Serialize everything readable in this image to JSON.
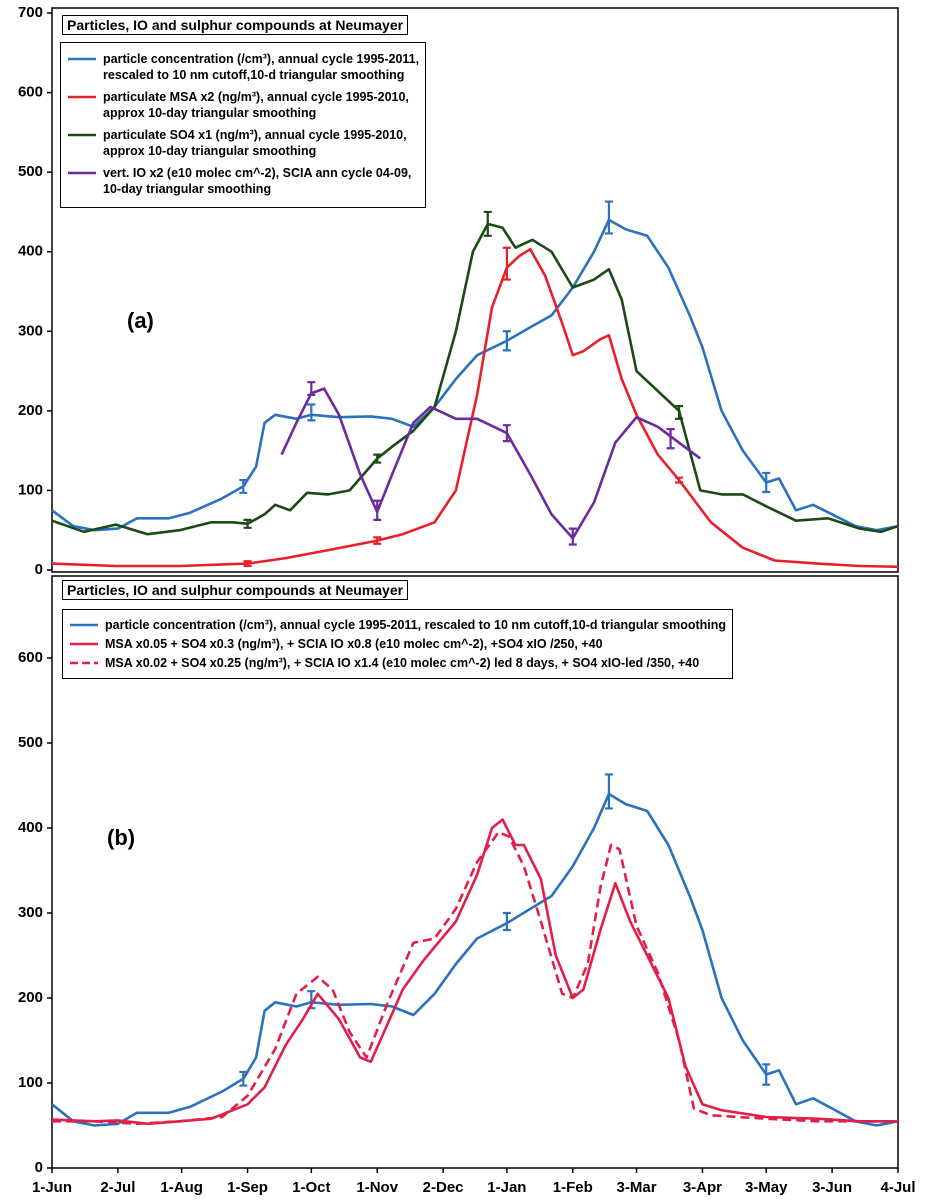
{
  "chart_data": [
    {
      "type": "line",
      "title": "Particles, IO and sulphur compounds at Neumayer",
      "annotation": "(a)",
      "xlim": [
        0,
        398
      ],
      "ylim": [
        0,
        700
      ],
      "yticks": [
        0,
        100,
        200,
        300,
        400,
        500,
        600,
        700
      ],
      "series": [
        {
          "name": "particle concentration (/cm³), annual cycle 1995-2011,\n   rescaled to 10 nm cutoff,10-d triangular smoothing",
          "color": "#2a72c0",
          "x": [
            0,
            10,
            20,
            31,
            40,
            55,
            65,
            80,
            90,
            96,
            100,
            105,
            115,
            122,
            135,
            150,
            160,
            170,
            180,
            190,
            200,
            214,
            225,
            235,
            245,
            255,
            262,
            270,
            280,
            290,
            300,
            306,
            315,
            325,
            336,
            342,
            350,
            358,
            367,
            378,
            388,
            398
          ],
          "values": [
            75,
            55,
            50,
            52,
            65,
            65,
            72,
            90,
            105,
            130,
            185,
            195,
            190,
            195,
            192,
            193,
            190,
            180,
            205,
            240,
            270,
            288,
            305,
            320,
            355,
            400,
            440,
            428,
            420,
            380,
            320,
            280,
            200,
            150,
            110,
            115,
            75,
            82,
            70,
            55,
            50,
            55
          ],
          "error_bars": {
            "x": [
              90,
              122,
              214,
              262,
              336
            ],
            "values": [
              105,
              198,
              288,
              443,
              110
            ],
            "errors": [
              8,
              10,
              12,
              20,
              12
            ]
          }
        },
        {
          "name": "particulate MSA x2 (ng/m³),  annual cycle 1995-2010,\n   approx 10-day triangular smoothing",
          "color": "#e8202a",
          "x": [
            0,
            30,
            60,
            92,
            110,
            130,
            153,
            165,
            180,
            190,
            200,
            207,
            214,
            220,
            225,
            232,
            240,
            245,
            250,
            258,
            262,
            268,
            275,
            285,
            295,
            310,
            325,
            340,
            360,
            380,
            398
          ],
          "values": [
            8,
            5,
            5,
            8,
            15,
            25,
            37,
            45,
            60,
            100,
            220,
            330,
            380,
            395,
            403,
            370,
            310,
            270,
            275,
            290,
            295,
            240,
            195,
            145,
            113,
            60,
            28,
            12,
            8,
            5,
            4
          ],
          "error_bars": {
            "x": [
              92,
              153,
              214,
              295
            ],
            "values": [
              8,
              37,
              385,
              113
            ],
            "errors": [
              3,
              4,
              20,
              3
            ]
          }
        },
        {
          "name": "particulate SO4 x1 (ng/m³),  annual cycle 1995-2010,\n   approx 10-day triangular smoothing",
          "color": "#1b4a14",
          "x": [
            0,
            15,
            30,
            45,
            60,
            75,
            85,
            92,
            100,
            105,
            112,
            120,
            130,
            140,
            153,
            160,
            170,
            180,
            190,
            198,
            205,
            212,
            218,
            226,
            235,
            245,
            255,
            262,
            268,
            275,
            285,
            295,
            305,
            315,
            325,
            336,
            350,
            365,
            380,
            390,
            398
          ],
          "values": [
            62,
            48,
            57,
            45,
            50,
            60,
            60,
            58,
            70,
            82,
            75,
            97,
            95,
            100,
            140,
            155,
            175,
            205,
            300,
            400,
            435,
            430,
            405,
            415,
            400,
            355,
            365,
            378,
            340,
            250,
            225,
            200,
            100,
            95,
            95,
            80,
            62,
            65,
            52,
            48,
            55
          ],
          "error_bars": {
            "x": [
              92,
              153,
              205,
              295
            ],
            "values": [
              58,
              140,
              435,
              198
            ],
            "errors": [
              5,
              5,
              15,
              8
            ]
          }
        },
        {
          "name": "vert. IO x2 (e10 molec cm^-2), SCIA ann cycle 04-09,\n   10-day triangular smoothing",
          "color": "#6a2aa0",
          "x": [
            108,
            115,
            122,
            128,
            135,
            145,
            153,
            160,
            170,
            178,
            190,
            200,
            214,
            225,
            235,
            245,
            255,
            265,
            275,
            285,
            295,
            305
          ],
          "values": [
            145,
            185,
            222,
            228,
            195,
            120,
            73,
            120,
            185,
            205,
            190,
            190,
            172,
            120,
            70,
            40,
            85,
            160,
            192,
            180,
            160,
            140
          ],
          "error_bars": {
            "x": [
              122,
              153,
              214,
              245,
              291
            ],
            "values": [
              228,
              75,
              172,
              42,
              165
            ],
            "errors": [
              8,
              12,
              10,
              10,
              12
            ]
          }
        }
      ]
    },
    {
      "type": "line",
      "title": "Particles, IO and sulphur compounds at Neumayer",
      "annotation": "(b)",
      "xlim": [
        0,
        398
      ],
      "ylim": [
        0,
        700
      ],
      "yticks": [
        0,
        100,
        200,
        300,
        400,
        500,
        600
      ],
      "xticks": [
        {
          "value": 0,
          "label": "1-Jun"
        },
        {
          "value": 31,
          "label": "2-Jul"
        },
        {
          "value": 61,
          "label": "1-Aug"
        },
        {
          "value": 92,
          "label": "1-Sep"
        },
        {
          "value": 122,
          "label": "1-Oct"
        },
        {
          "value": 153,
          "label": "1-Nov"
        },
        {
          "value": 184,
          "label": "2-Dec"
        },
        {
          "value": 214,
          "label": "1-Jan"
        },
        {
          "value": 245,
          "label": "1-Feb"
        },
        {
          "value": 275,
          "label": "3-Mar"
        },
        {
          "value": 306,
          "label": "3-Apr"
        },
        {
          "value": 336,
          "label": "3-May"
        },
        {
          "value": 367,
          "label": "3-Jun"
        },
        {
          "value": 398,
          "label": "4-Jul"
        }
      ],
      "series": [
        {
          "name": "particle concentration (/cm³), annual cycle 1995-2011, rescaled to 10 nm cutoff,10-d triangular smoothing",
          "color": "#2a72c0",
          "x": [
            0,
            10,
            20,
            31,
            40,
            55,
            65,
            80,
            90,
            96,
            100,
            105,
            115,
            122,
            135,
            150,
            160,
            170,
            180,
            190,
            200,
            214,
            225,
            235,
            245,
            255,
            262,
            270,
            280,
            290,
            300,
            306,
            315,
            325,
            336,
            342,
            350,
            358,
            367,
            378,
            388,
            398
          ],
          "values": [
            75,
            55,
            50,
            52,
            65,
            65,
            72,
            90,
            105,
            130,
            185,
            195,
            190,
            195,
            192,
            193,
            190,
            180,
            205,
            240,
            270,
            288,
            305,
            320,
            355,
            400,
            440,
            428,
            420,
            380,
            320,
            280,
            200,
            150,
            110,
            115,
            75,
            82,
            70,
            55,
            50,
            55
          ],
          "error_bars": {
            "x": [
              90,
              122,
              214,
              262,
              336
            ],
            "values": [
              105,
              198,
              290,
              443,
              110
            ],
            "errors": [
              8,
              10,
              10,
              20,
              12
            ]
          }
        },
        {
          "name": "MSA x0.05 + SO4 x0.3 (ng/m³), + SCIA IO x0.8 (e10 molec cm^-2), +SO4 xIO /250, +40",
          "color": "#e0204a",
          "x": [
            0,
            20,
            31,
            45,
            60,
            75,
            92,
            100,
            110,
            118,
            125,
            135,
            145,
            150,
            158,
            165,
            175,
            190,
            200,
            207,
            212,
            218,
            222,
            230,
            237,
            245,
            250,
            258,
            265,
            272,
            280,
            290,
            298,
            306,
            315,
            336,
            360,
            380,
            398
          ],
          "values": [
            57,
            55,
            56,
            52,
            55,
            58,
            75,
            95,
            145,
            175,
            205,
            175,
            130,
            125,
            170,
            210,
            245,
            290,
            345,
            400,
            410,
            380,
            380,
            340,
            250,
            200,
            210,
            280,
            335,
            290,
            250,
            200,
            120,
            75,
            68,
            60,
            58,
            55,
            55
          ]
        },
        {
          "name": "MSA x0.02 + SO4 x0.25 (ng/m³), + SCIA IO x1.4 (e10 molec cm^-2) led 8 days, + SO4 xIO-led /350, +40",
          "color": "#e0204a",
          "dash": "dashed",
          "x": [
            0,
            20,
            40,
            60,
            80,
            92,
            105,
            115,
            125,
            132,
            140,
            148,
            158,
            170,
            180,
            190,
            200,
            210,
            215,
            222,
            230,
            240,
            245,
            252,
            258,
            263,
            267,
            275,
            285,
            295,
            302,
            310,
            336,
            360,
            380,
            398
          ],
          "values": [
            55,
            55,
            52,
            55,
            60,
            85,
            140,
            205,
            225,
            210,
            160,
            130,
            195,
            265,
            270,
            305,
            360,
            395,
            390,
            355,
            290,
            205,
            200,
            240,
            330,
            380,
            375,
            285,
            230,
            150,
            70,
            62,
            58,
            55,
            55,
            55
          ]
        }
      ]
    }
  ]
}
